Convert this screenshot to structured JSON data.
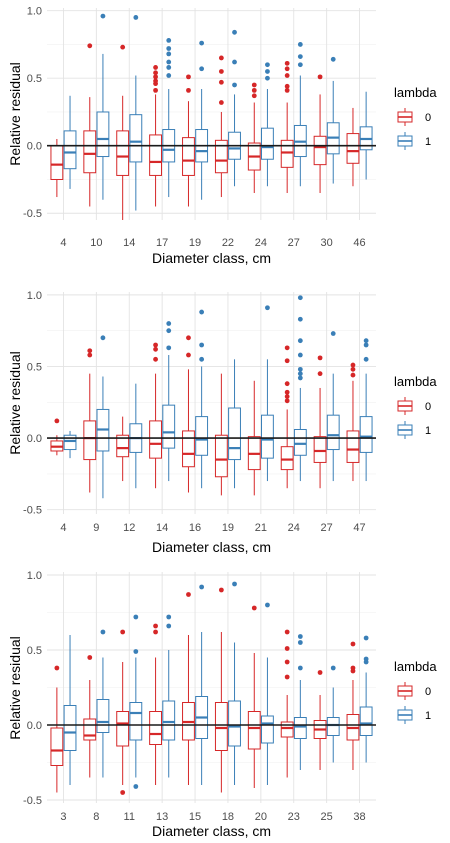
{
  "palette": {
    "lambda0": "#d62728",
    "lambda1": "#3a7fb7"
  },
  "legend": {
    "title": "lambda",
    "labels": [
      "0",
      "1"
    ]
  },
  "chart_data": [
    {
      "type": "boxplot",
      "xlabel": "Diameter class, cm",
      "ylabel": "Relative residual",
      "ylim": [
        -0.55,
        1.02
      ],
      "yticks": [
        -0.5,
        0.0,
        0.5,
        1.0
      ],
      "ytick_labels": [
        "-0.5",
        "0.0",
        "0.5",
        "1.0"
      ],
      "reference_line": 0,
      "categories": [
        "4",
        "10",
        "14",
        "17",
        "19",
        "22",
        "24",
        "27",
        "30",
        "46"
      ],
      "series": [
        {
          "name": "0",
          "boxes": [
            {
              "min": -0.38,
              "q1": -0.25,
              "median": -0.14,
              "q3": 0.0,
              "max": 0.05,
              "outliers": []
            },
            {
              "min": -0.45,
              "q1": -0.2,
              "median": -0.06,
              "q3": 0.11,
              "max": 0.36,
              "outliers": [
                0.74
              ]
            },
            {
              "min": -0.55,
              "q1": -0.22,
              "median": -0.08,
              "q3": 0.11,
              "max": 0.37,
              "outliers": [
                0.73
              ]
            },
            {
              "min": -0.45,
              "q1": -0.22,
              "median": -0.12,
              "q3": 0.08,
              "max": 0.38,
              "outliers": [
                0.41,
                0.46,
                0.48,
                0.51,
                0.54,
                0.58
              ]
            },
            {
              "min": -0.45,
              "q1": -0.22,
              "median": -0.11,
              "q3": 0.06,
              "max": 0.33,
              "outliers": [
                0.41,
                0.51
              ]
            },
            {
              "min": -0.38,
              "q1": -0.2,
              "median": -0.11,
              "q3": 0.04,
              "max": 0.25,
              "outliers": [
                0.32,
                0.47,
                0.55,
                0.65
              ]
            },
            {
              "min": -0.35,
              "q1": -0.18,
              "median": -0.08,
              "q3": 0.02,
              "max": 0.32,
              "outliers": [
                0.37,
                0.41,
                0.45
              ]
            },
            {
              "min": -0.35,
              "q1": -0.16,
              "median": -0.05,
              "q3": 0.04,
              "max": 0.32,
              "outliers": [
                0.41,
                0.44,
                0.52,
                0.57,
                0.61
              ]
            },
            {
              "min": -0.35,
              "q1": -0.14,
              "median": -0.01,
              "q3": 0.07,
              "max": 0.38,
              "outliers": [
                0.51
              ]
            },
            {
              "min": -0.3,
              "q1": -0.13,
              "median": -0.04,
              "q3": 0.09,
              "max": 0.28,
              "outliers": []
            }
          ]
        },
        {
          "name": "1",
          "boxes": [
            {
              "min": -0.32,
              "q1": -0.17,
              "median": -0.05,
              "q3": 0.11,
              "max": 0.37,
              "outliers": []
            },
            {
              "min": -0.4,
              "q1": -0.08,
              "median": 0.05,
              "q3": 0.25,
              "max": 0.68,
              "outliers": [
                0.96
              ]
            },
            {
              "min": -0.48,
              "q1": -0.12,
              "median": 0.03,
              "q3": 0.23,
              "max": 0.52,
              "outliers": [
                0.95
              ]
            },
            {
              "min": -0.38,
              "q1": -0.12,
              "median": -0.03,
              "q3": 0.12,
              "max": 0.42,
              "outliers": [
                0.52,
                0.58,
                0.62,
                0.68,
                0.72,
                0.78
              ]
            },
            {
              "min": -0.4,
              "q1": -0.12,
              "median": -0.04,
              "q3": 0.12,
              "max": 0.42,
              "outliers": [
                0.57,
                0.76
              ]
            },
            {
              "min": -0.3,
              "q1": -0.1,
              "median": -0.02,
              "q3": 0.1,
              "max": 0.38,
              "outliers": [
                0.45,
                0.62,
                0.84
              ]
            },
            {
              "min": -0.3,
              "q1": -0.1,
              "median": -0.01,
              "q3": 0.13,
              "max": 0.42,
              "outliers": [
                0.5,
                0.55,
                0.6
              ]
            },
            {
              "min": -0.3,
              "q1": -0.08,
              "median": 0.03,
              "q3": 0.15,
              "max": 0.52,
              "outliers": [
                0.6,
                0.66,
                0.75
              ]
            },
            {
              "min": -0.28,
              "q1": -0.06,
              "median": 0.06,
              "q3": 0.17,
              "max": 0.48,
              "outliers": [
                0.64
              ]
            },
            {
              "min": -0.25,
              "q1": -0.03,
              "median": 0.05,
              "q3": 0.14,
              "max": 0.4,
              "outliers": []
            }
          ]
        }
      ]
    },
    {
      "type": "boxplot",
      "xlabel": "Diameter class, cm",
      "ylabel": "Relative residual",
      "ylim": [
        -0.53,
        1.02
      ],
      "yticks": [
        -0.5,
        0.0,
        0.5,
        1.0
      ],
      "ytick_labels": [
        "-0.5",
        "0.0",
        "0.5",
        "1.0"
      ],
      "reference_line": 0,
      "categories": [
        "4",
        "9",
        "12",
        "14",
        "16",
        "19",
        "21",
        "24",
        "27",
        "47"
      ],
      "series": [
        {
          "name": "0",
          "boxes": [
            {
              "min": -0.12,
              "q1": -0.09,
              "median": -0.06,
              "q3": -0.02,
              "max": 0.02,
              "outliers": [
                0.12
              ]
            },
            {
              "min": -0.38,
              "q1": -0.15,
              "median": 0.0,
              "q3": 0.12,
              "max": 0.45,
              "outliers": [
                0.58,
                0.61
              ]
            },
            {
              "min": -0.3,
              "q1": -0.13,
              "median": -0.07,
              "q3": 0.02,
              "max": 0.15,
              "outliers": []
            },
            {
              "min": -0.35,
              "q1": -0.14,
              "median": -0.04,
              "q3": 0.12,
              "max": 0.45,
              "outliers": [
                0.55,
                0.62,
                0.65
              ]
            },
            {
              "min": -0.38,
              "q1": -0.2,
              "median": -0.11,
              "q3": 0.05,
              "max": 0.48,
              "outliers": [
                0.58,
                0.7
              ]
            },
            {
              "min": -0.4,
              "q1": -0.27,
              "median": -0.15,
              "q3": 0.02,
              "max": 0.45,
              "outliers": []
            },
            {
              "min": -0.4,
              "q1": -0.22,
              "median": -0.11,
              "q3": 0.01,
              "max": 0.4,
              "outliers": []
            },
            {
              "min": -0.35,
              "q1": -0.22,
              "median": -0.15,
              "q3": -0.06,
              "max": 0.2,
              "outliers": [
                0.26,
                0.29,
                0.32,
                0.38,
                0.54,
                0.63
              ]
            },
            {
              "min": -0.35,
              "q1": -0.17,
              "median": -0.09,
              "q3": 0.01,
              "max": 0.35,
              "outliers": [
                0.45,
                0.56
              ]
            },
            {
              "min": -0.3,
              "q1": -0.17,
              "median": -0.08,
              "q3": 0.05,
              "max": 0.4,
              "outliers": [
                0.44,
                0.48,
                0.51
              ]
            }
          ]
        },
        {
          "name": "1",
          "boxes": [
            {
              "min": -0.14,
              "q1": -0.08,
              "median": -0.02,
              "q3": 0.02,
              "max": 0.05,
              "outliers": []
            },
            {
              "min": -0.42,
              "q1": -0.09,
              "median": 0.06,
              "q3": 0.2,
              "max": 0.43,
              "outliers": [
                0.7
              ]
            },
            {
              "min": -0.35,
              "q1": -0.1,
              "median": 0.0,
              "q3": 0.1,
              "max": 0.38,
              "outliers": []
            },
            {
              "min": -0.3,
              "q1": -0.07,
              "median": 0.04,
              "q3": 0.23,
              "max": 0.58,
              "outliers": [
                0.63,
                0.75,
                0.8
              ]
            },
            {
              "min": -0.35,
              "q1": -0.12,
              "median": -0.01,
              "q3": 0.15,
              "max": 0.5,
              "outliers": [
                0.55,
                0.65,
                0.88
              ]
            },
            {
              "min": -0.35,
              "q1": -0.15,
              "median": -0.07,
              "q3": 0.21,
              "max": 0.55,
              "outliers": []
            },
            {
              "min": -0.3,
              "q1": -0.14,
              "median": -0.01,
              "q3": 0.16,
              "max": 0.55,
              "outliers": [
                0.91
              ]
            },
            {
              "min": -0.3,
              "q1": -0.12,
              "median": -0.04,
              "q3": 0.06,
              "max": 0.35,
              "outliers": [
                0.42,
                0.45,
                0.48,
                0.58,
                0.68,
                0.83,
                0.98
              ]
            },
            {
              "min": -0.3,
              "q1": -0.08,
              "median": 0.02,
              "q3": 0.16,
              "max": 0.45,
              "outliers": [
                0.73
              ]
            },
            {
              "min": -0.3,
              "q1": -0.1,
              "median": 0.01,
              "q3": 0.15,
              "max": 0.45,
              "outliers": [
                0.55,
                0.65,
                0.68
              ]
            }
          ]
        }
      ]
    },
    {
      "type": "boxplot",
      "xlabel": "Diameter class, cm",
      "ylabel": "Relative residual",
      "ylim": [
        -0.52,
        1.02
      ],
      "yticks": [
        -0.5,
        0.0,
        0.5,
        1.0
      ],
      "ytick_labels": [
        "-0.5",
        "0.0",
        "0.5",
        "1.0"
      ],
      "reference_line": 0,
      "categories": [
        "3",
        "8",
        "11",
        "13",
        "15",
        "18",
        "20",
        "23",
        "25",
        "38"
      ],
      "series": [
        {
          "name": "0",
          "boxes": [
            {
              "min": -0.45,
              "q1": -0.27,
              "median": -0.17,
              "q3": -0.02,
              "max": 0.25,
              "outliers": [
                0.38
              ]
            },
            {
              "min": -0.35,
              "q1": -0.1,
              "median": -0.07,
              "q3": 0.04,
              "max": 0.3,
              "outliers": [
                0.45
              ]
            },
            {
              "min": -0.4,
              "q1": -0.14,
              "median": 0.01,
              "q3": 0.09,
              "max": 0.42,
              "outliers": [
                -0.45,
                0.62
              ]
            },
            {
              "min": -0.4,
              "q1": -0.13,
              "median": -0.06,
              "q3": 0.09,
              "max": 0.45,
              "outliers": [
                0.62,
                0.66
              ]
            },
            {
              "min": -0.4,
              "q1": -0.1,
              "median": 0.02,
              "q3": 0.15,
              "max": 0.6,
              "outliers": [
                0.87
              ]
            },
            {
              "min": -0.45,
              "q1": -0.17,
              "median": -0.02,
              "q3": 0.15,
              "max": 0.62,
              "outliers": [
                0.9
              ]
            },
            {
              "min": -0.42,
              "q1": -0.16,
              "median": -0.02,
              "q3": 0.09,
              "max": 0.48,
              "outliers": [
                0.78
              ]
            },
            {
              "min": -0.35,
              "q1": -0.08,
              "median": -0.02,
              "q3": 0.02,
              "max": 0.2,
              "outliers": [
                0.32,
                0.42,
                0.51,
                0.62
              ]
            },
            {
              "min": -0.3,
              "q1": -0.09,
              "median": -0.03,
              "q3": 0.03,
              "max": 0.2,
              "outliers": [
                0.35
              ]
            },
            {
              "min": -0.3,
              "q1": -0.1,
              "median": -0.02,
              "q3": 0.07,
              "max": 0.3,
              "outliers": [
                0.36,
                0.38,
                0.54
              ]
            }
          ]
        },
        {
          "name": "1",
          "boxes": [
            {
              "min": -0.4,
              "q1": -0.17,
              "median": -0.05,
              "q3": 0.13,
              "max": 0.6,
              "outliers": []
            },
            {
              "min": -0.35,
              "q1": -0.05,
              "median": 0.02,
              "q3": 0.17,
              "max": 0.45,
              "outliers": [
                0.62
              ]
            },
            {
              "min": -0.35,
              "q1": -0.1,
              "median": 0.08,
              "q3": 0.15,
              "max": 0.45,
              "outliers": [
                -0.41,
                0.49,
                0.72
              ]
            },
            {
              "min": -0.35,
              "q1": -0.1,
              "median": 0.02,
              "q3": 0.16,
              "max": 0.5,
              "outliers": [
                0.66,
                0.72
              ]
            },
            {
              "min": -0.4,
              "q1": -0.09,
              "median": 0.05,
              "q3": 0.19,
              "max": 0.62,
              "outliers": [
                0.92
              ]
            },
            {
              "min": -0.4,
              "q1": -0.14,
              "median": -0.01,
              "q3": 0.16,
              "max": 0.55,
              "outliers": [
                0.94
              ]
            },
            {
              "min": -0.4,
              "q1": -0.12,
              "median": 0.01,
              "q3": 0.06,
              "max": 0.45,
              "outliers": [
                0.8
              ]
            },
            {
              "min": -0.3,
              "q1": -0.09,
              "median": -0.01,
              "q3": 0.05,
              "max": 0.3,
              "outliers": [
                0.38,
                0.55,
                0.59
              ]
            },
            {
              "min": -0.25,
              "q1": -0.07,
              "median": 0.0,
              "q3": 0.05,
              "max": 0.25,
              "outliers": [
                0.38
              ]
            },
            {
              "min": -0.25,
              "q1": -0.07,
              "median": 0.01,
              "q3": 0.12,
              "max": 0.35,
              "outliers": [
                0.42,
                0.44,
                0.58
              ]
            }
          ]
        }
      ]
    }
  ]
}
